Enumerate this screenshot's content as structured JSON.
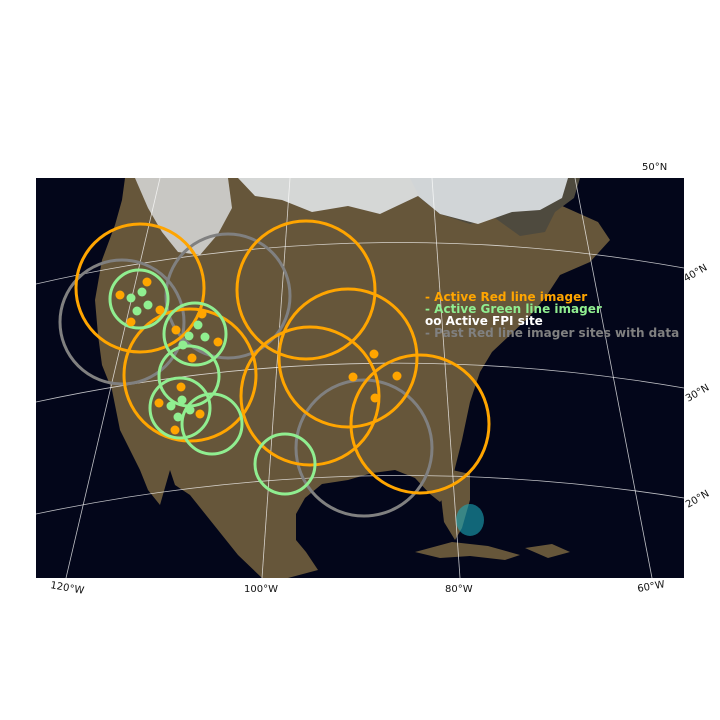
{
  "map": {
    "projection": "lambert-conformal-conic",
    "colors": {
      "ocean": "#03061a",
      "land": "#66563a",
      "snow": "#e9edf2",
      "graticule": "#ffffff",
      "active_red": "#ffa500",
      "active_green": "#90ee90",
      "past_red": "#808080",
      "fpi": "#ffffff"
    },
    "lat_labels": [
      {
        "id": "lat-50",
        "text": "50°N"
      },
      {
        "id": "lat-40",
        "text": "40°N"
      },
      {
        "id": "lat-30",
        "text": "30°N"
      },
      {
        "id": "lat-20",
        "text": "20°N"
      }
    ],
    "lon_labels": [
      {
        "id": "lon-120",
        "text": "120°W"
      },
      {
        "id": "lon-100",
        "text": "100°W"
      },
      {
        "id": "lon-80",
        "text": "80°W"
      },
      {
        "id": "lon-60",
        "text": "60°W"
      }
    ]
  },
  "legend": {
    "red": "- Active Red line imager",
    "green": "- Active Green line imager",
    "fpi": "oo Active FPI site",
    "past": "- Past Red line imager sites with data"
  }
}
